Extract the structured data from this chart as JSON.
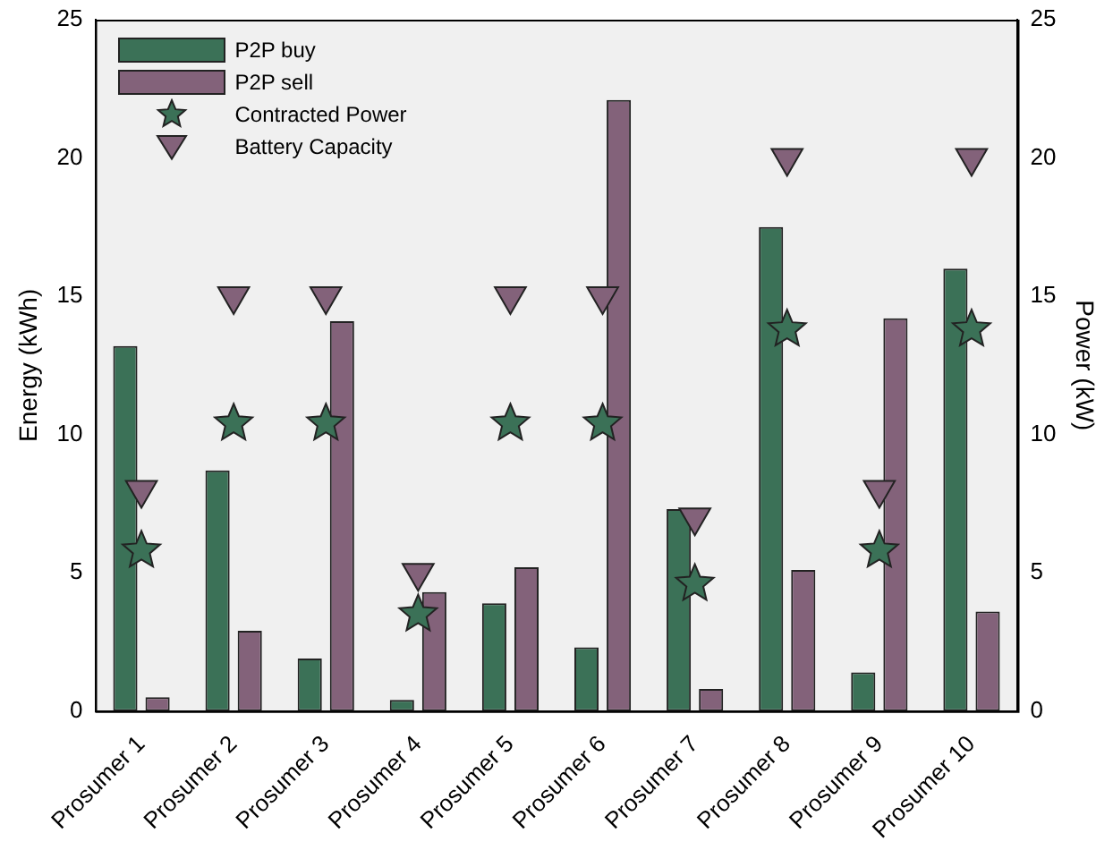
{
  "chart_data": {
    "type": "bar",
    "ylabel": "Energy (kWh)",
    "y2label": "Power (kW)",
    "categories": [
      "Prosumer 1",
      "Prosumer 2",
      "Prosumer 3",
      "Prosumer 4",
      "Prosumer 5",
      "Prosumer 6",
      "Prosumer 7",
      "Prosumer 8",
      "Prosumer 9",
      "Prosumer 10"
    ],
    "series": [
      {
        "name": "P2P buy",
        "color": "#3b7157",
        "values": [
          13.2,
          8.7,
          1.9,
          0.4,
          3.9,
          2.3,
          7.3,
          17.5,
          1.4,
          16.0
        ]
      },
      {
        "name": "P2P sell",
        "color": "#83627a",
        "values": [
          0.5,
          2.9,
          14.1,
          4.3,
          5.2,
          22.1,
          0.8,
          5.1,
          14.2,
          3.6
        ]
      },
      {
        "name": "Contracted Power",
        "type": "scatter",
        "axis": "y2",
        "marker": "star",
        "color": "#3b7157",
        "values": [
          5.8,
          10.4,
          10.4,
          3.5,
          10.4,
          10.4,
          4.6,
          13.8,
          5.8,
          13.8
        ]
      },
      {
        "name": "Battery Capacity",
        "type": "scatter",
        "axis": "y2",
        "marker": "triangle",
        "color": "#83627a",
        "values": [
          8,
          15,
          15,
          5,
          15,
          15,
          7,
          20,
          8,
          20
        ]
      }
    ],
    "ylim": [
      0,
      25
    ],
    "yticks": [
      0,
      5,
      10,
      15,
      20,
      25
    ],
    "y2lim": [
      0,
      25
    ],
    "y2ticks": [
      0,
      5,
      10,
      15,
      20,
      25
    ],
    "grid": false,
    "legend": "top left"
  }
}
